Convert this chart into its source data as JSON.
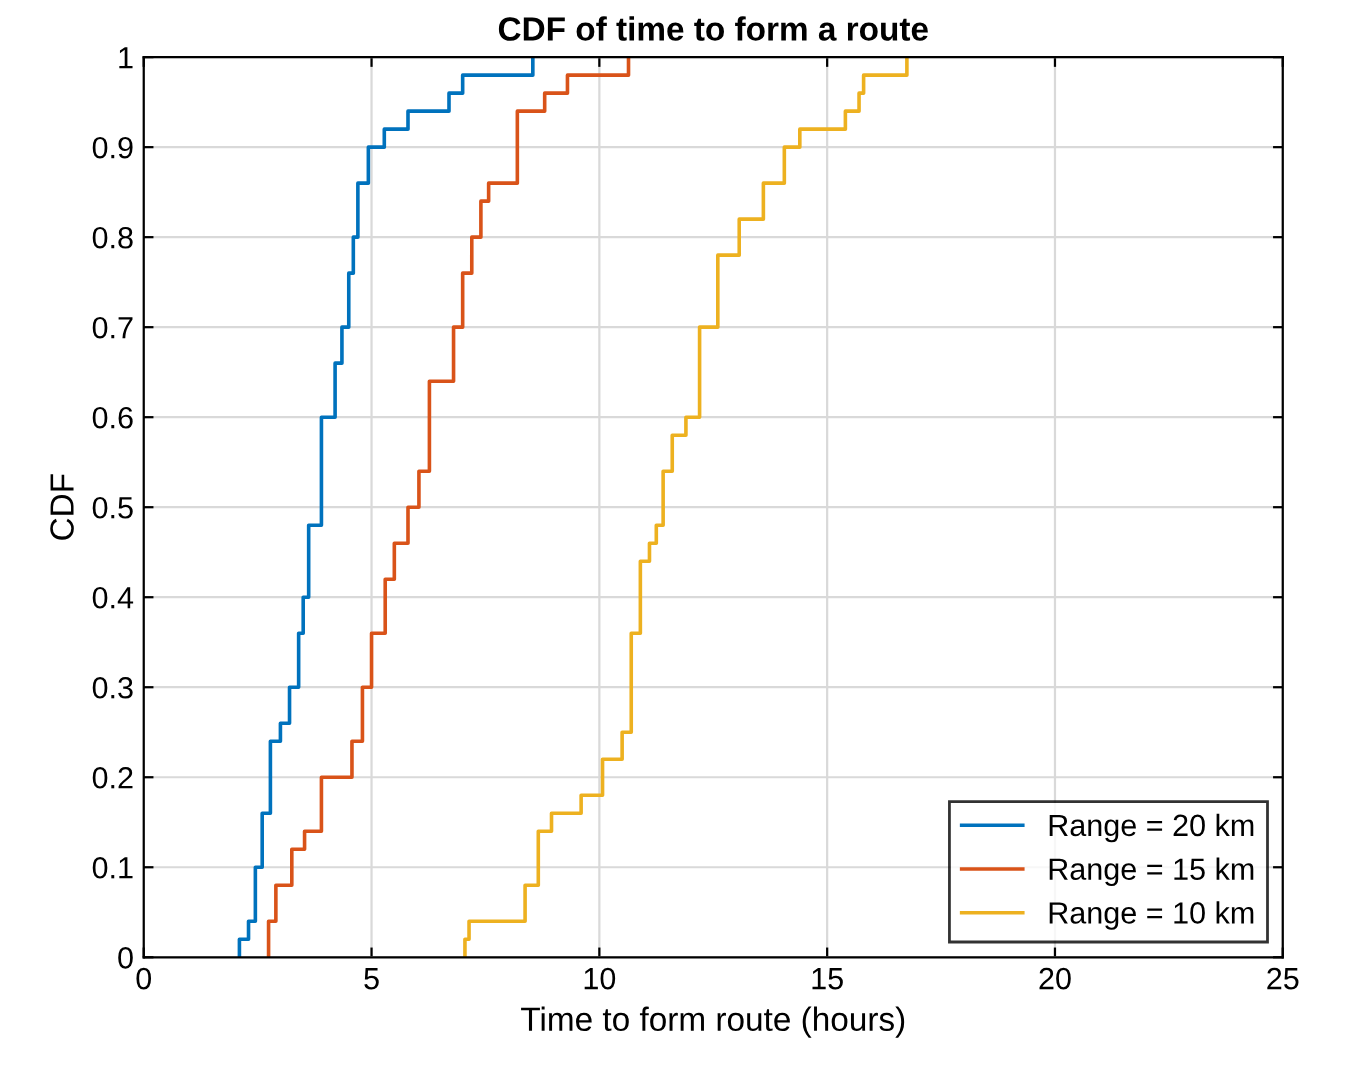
{
  "chart_data": {
    "type": "step",
    "title": "CDF of time to form a route",
    "xlabel": "Time to form route (hours)",
    "ylabel": "CDF",
    "xlim": [
      0,
      25
    ],
    "xticks": [
      0,
      5,
      10,
      15,
      20,
      25
    ],
    "ylim": [
      0,
      1
    ],
    "yticks": [
      0,
      0.1,
      0.2,
      0.3,
      0.4,
      0.5,
      0.6,
      0.7,
      0.8,
      0.9,
      1
    ],
    "grid": true,
    "legend": "bottom right",
    "series": [
      {
        "name": "Range = 20 km",
        "color": "#0072bd",
        "x": [
          2.1,
          2.1,
          2.3,
          2.45,
          2.6,
          2.78,
          3.0,
          3.2,
          3.4,
          3.5,
          3.62,
          3.9,
          4.2,
          4.35,
          4.5,
          4.6,
          4.7,
          4.93,
          5.28,
          5.8,
          6.7,
          7.0,
          8.54
        ],
        "values": [
          0,
          0.02,
          0.04,
          0.1,
          0.16,
          0.24,
          0.26,
          0.3,
          0.36,
          0.4,
          0.48,
          0.6,
          0.66,
          0.7,
          0.76,
          0.8,
          0.86,
          0.9,
          0.92,
          0.94,
          0.96,
          0.98,
          1
        ]
      },
      {
        "name": "Range = 15 km",
        "color": "#d95319",
        "x": [
          2.74,
          2.74,
          2.9,
          3.25,
          3.53,
          3.9,
          4.57,
          4.8,
          5.0,
          5.3,
          5.5,
          5.8,
          6.04,
          6.27,
          6.8,
          7.0,
          7.2,
          7.4,
          7.57,
          8.2,
          8.8,
          9.3,
          10.64
        ],
        "values": [
          0,
          0.04,
          0.08,
          0.12,
          0.14,
          0.2,
          0.24,
          0.3,
          0.36,
          0.42,
          0.46,
          0.5,
          0.54,
          0.64,
          0.7,
          0.76,
          0.8,
          0.84,
          0.86,
          0.94,
          0.96,
          0.98,
          1
        ]
      },
      {
        "name": "Range = 10 km",
        "color": "#edb120",
        "x": [
          7.05,
          7.05,
          7.14,
          8.37,
          8.66,
          8.95,
          9.6,
          10.07,
          10.5,
          10.7,
          10.9,
          11.1,
          11.25,
          11.4,
          11.6,
          11.9,
          12.2,
          12.6,
          13.07,
          13.6,
          14.06,
          14.4,
          15.4,
          15.7,
          15.8,
          16.75
        ],
        "values": [
          0,
          0.02,
          0.04,
          0.08,
          0.14,
          0.16,
          0.18,
          0.22,
          0.25,
          0.36,
          0.44,
          0.46,
          0.48,
          0.54,
          0.58,
          0.6,
          0.7,
          0.78,
          0.82,
          0.86,
          0.9,
          0.92,
          0.94,
          0.96,
          0.98,
          1
        ]
      }
    ]
  }
}
